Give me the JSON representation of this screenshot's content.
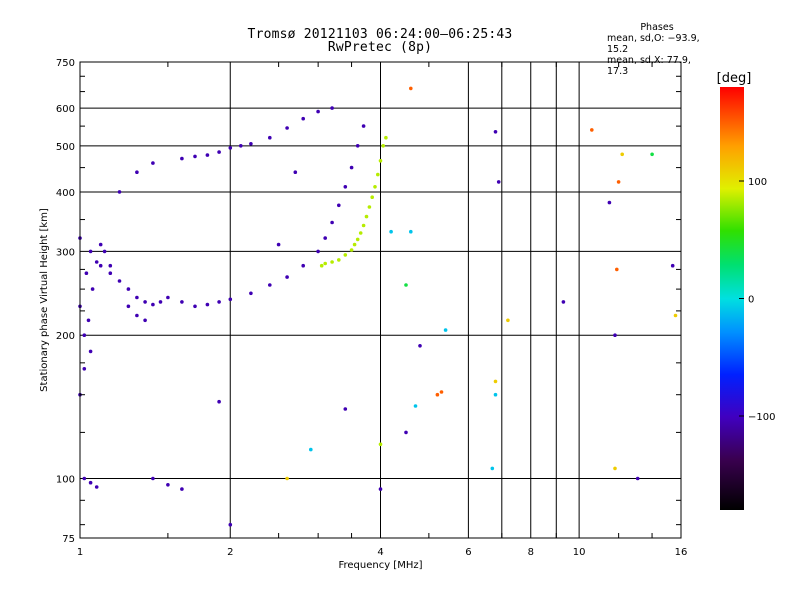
{
  "chart_data": {
    "type": "scatter",
    "title": "Tromsø 20121103 06:24:00–06:25:43",
    "subtitle": "RwPretec (8p)",
    "xlabel": "Frequency [MHz]",
    "ylabel": "Stationary phase Virtual Height [km]",
    "x_scale": "log",
    "y_scale": "log",
    "xlim": [
      1,
      16
    ],
    "ylim": [
      75,
      750
    ],
    "xticks": [
      1,
      2,
      4,
      6,
      8,
      10,
      16
    ],
    "xtick_labels": [
      "1",
      "2",
      "4",
      "6",
      "8",
      "10",
      "16"
    ],
    "x_minor_grid": [
      7,
      9
    ],
    "yticks": [
      75,
      100,
      200,
      300,
      400,
      500,
      600,
      750
    ],
    "ytick_labels": [
      "75",
      "100",
      "200",
      "300",
      "400",
      "500",
      "600",
      "750"
    ],
    "grid": true,
    "stats": {
      "heading": "Phases",
      "line_o": "mean, sd,O:  −93.9, 15.2",
      "line_x": "mean, sd,X:   77.9, 17.3"
    },
    "colorbar": {
      "label": "[deg]",
      "min": -180,
      "max": 180,
      "ticks": [
        100,
        0,
        -100
      ],
      "tick_labels": [
        "100",
        "0",
        "−100"
      ]
    },
    "series": [
      {
        "points": [
          [
            1.0,
            150
          ],
          [
            1.02,
            170
          ],
          [
            1.05,
            185
          ],
          [
            1.02,
            200
          ],
          [
            1.04,
            215
          ],
          [
            1.0,
            230
          ],
          [
            1.06,
            250
          ],
          [
            1.03,
            270
          ],
          [
            1.08,
            285
          ],
          [
            1.05,
            300
          ],
          [
            1.1,
            310
          ],
          [
            1.0,
            320
          ],
          [
            1.12,
            300
          ],
          [
            1.15,
            280
          ],
          [
            1.2,
            260
          ],
          [
            1.25,
            250
          ],
          [
            1.3,
            240
          ],
          [
            1.35,
            235
          ],
          [
            1.4,
            232
          ],
          [
            1.45,
            235
          ],
          [
            1.5,
            240
          ],
          [
            1.6,
            235
          ],
          [
            1.7,
            230
          ],
          [
            1.8,
            232
          ],
          [
            1.9,
            235
          ],
          [
            2.0,
            238
          ],
          [
            2.2,
            245
          ],
          [
            2.4,
            255
          ],
          [
            2.6,
            265
          ],
          [
            2.8,
            280
          ],
          [
            3.0,
            300
          ],
          [
            3.1,
            320
          ],
          [
            3.2,
            345
          ],
          [
            3.3,
            375
          ],
          [
            3.4,
            410
          ],
          [
            3.5,
            450
          ],
          [
            3.6,
            500
          ],
          [
            3.7,
            550
          ],
          [
            1.6,
            470
          ],
          [
            1.7,
            475
          ],
          [
            1.8,
            478
          ],
          [
            1.9,
            485
          ],
          [
            2.0,
            495
          ],
          [
            2.1,
            500
          ],
          [
            2.2,
            505
          ],
          [
            2.4,
            520
          ],
          [
            2.6,
            545
          ],
          [
            2.8,
            570
          ],
          [
            3.0,
            590
          ],
          [
            1.3,
            440
          ],
          [
            1.4,
            460
          ],
          [
            1.2,
            400
          ],
          [
            1.1,
            280
          ],
          [
            1.15,
            270
          ],
          [
            1.25,
            230
          ],
          [
            1.3,
            220
          ],
          [
            1.35,
            215
          ],
          [
            1.02,
            100
          ],
          [
            1.05,
            98
          ],
          [
            1.08,
            96
          ],
          [
            1.5,
            97
          ],
          [
            1.6,
            95
          ],
          [
            2.0,
            80
          ],
          [
            1.9,
            145
          ],
          [
            3.4,
            140
          ],
          [
            4.8,
            190
          ],
          [
            3.2,
            600
          ],
          [
            2.7,
            440
          ],
          [
            1.4,
            100
          ],
          [
            2.5,
            310
          ],
          [
            9.3,
            235
          ],
          [
            11.8,
            200
          ],
          [
            11.5,
            380
          ],
          [
            15.4,
            280
          ],
          [
            13.1,
            100
          ],
          [
            6.8,
            535
          ],
          [
            6.9,
            420
          ],
          [
            4.0,
            95
          ],
          [
            4.5,
            125
          ]
        ],
        "phase_deg": -105
      },
      {
        "points": [
          [
            3.05,
            280
          ],
          [
            3.1,
            283
          ],
          [
            3.2,
            285
          ],
          [
            3.3,
            288
          ],
          [
            3.4,
            295
          ],
          [
            3.5,
            302
          ],
          [
            3.55,
            310
          ],
          [
            3.6,
            318
          ],
          [
            3.65,
            328
          ],
          [
            3.7,
            340
          ],
          [
            3.75,
            355
          ],
          [
            3.8,
            372
          ],
          [
            3.85,
            390
          ],
          [
            3.9,
            410
          ],
          [
            3.95,
            435
          ],
          [
            4.0,
            465
          ],
          [
            4.05,
            500
          ],
          [
            4.1,
            520
          ],
          [
            4.0,
            118
          ]
        ],
        "phase_deg": 85
      },
      {
        "points": [
          [
            4.6,
            330
          ],
          [
            5.4,
            205
          ],
          [
            6.8,
            150
          ],
          [
            4.2,
            330
          ],
          [
            4.7,
            142
          ],
          [
            6.7,
            105
          ],
          [
            2.9,
            115
          ]
        ],
        "phase_deg": -10
      },
      {
        "points": [
          [
            4.6,
            660
          ],
          [
            5.2,
            150
          ],
          [
            11.9,
            275
          ],
          [
            10.6,
            540
          ],
          [
            12.0,
            420
          ],
          [
            5.3,
            152
          ]
        ],
        "phase_deg": 150
      },
      {
        "points": [
          [
            6.8,
            160
          ],
          [
            7.2,
            215
          ],
          [
            11.8,
            105
          ],
          [
            12.2,
            480
          ],
          [
            15.6,
            220
          ],
          [
            2.6,
            100
          ]
        ],
        "phase_deg": 110
      },
      {
        "points": [
          [
            14.0,
            480
          ],
          [
            4.5,
            255
          ]
        ],
        "phase_deg": 40
      }
    ]
  }
}
